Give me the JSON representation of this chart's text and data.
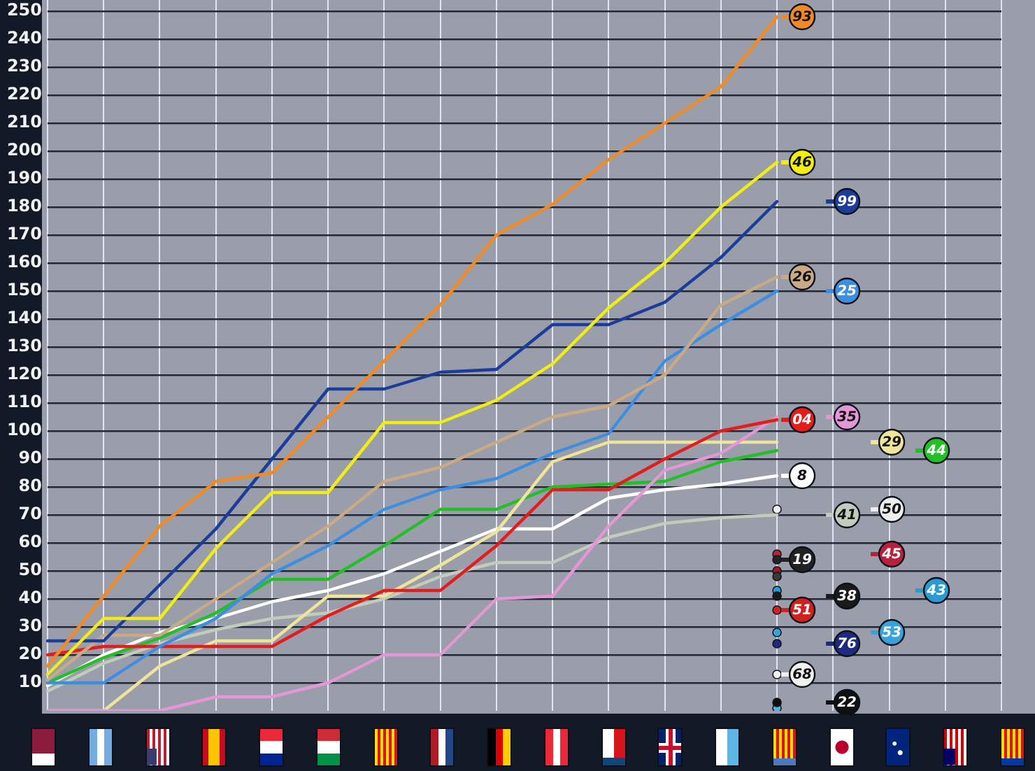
{
  "chart_data": {
    "type": "line",
    "categories": [
      null,
      null,
      null,
      null,
      null,
      null,
      null,
      null,
      null,
      null,
      null,
      null,
      null,
      null,
      null,
      null,
      null,
      null
    ],
    "series": [
      {
        "name": "93",
        "color": "#f08a24",
        "values": [
          16,
          41,
          66,
          82,
          85,
          105,
          125,
          145,
          170,
          181,
          197,
          210,
          223,
          248,
          null,
          null,
          null,
          null
        ]
      },
      {
        "name": "46",
        "color": "#f2ee10",
        "values": [
          13,
          33,
          33,
          58,
          78,
          78,
          103,
          103,
          111,
          124,
          144,
          160,
          180,
          196,
          null,
          null,
          null,
          null
        ]
      },
      {
        "name": "99",
        "color": "#1c3c9c",
        "values": [
          25,
          25,
          45,
          65,
          90,
          115,
          115,
          121,
          122,
          138,
          138,
          146,
          162,
          182,
          null,
          null,
          null,
          null
        ]
      },
      {
        "name": "26",
        "color": "#c9aa84",
        "values": [
          11,
          27,
          27,
          40,
          53,
          66,
          82,
          87,
          96,
          105,
          109,
          120,
          145,
          155,
          null,
          null,
          null,
          null
        ]
      },
      {
        "name": "25",
        "color": "#3d8ee0",
        "values": [
          10,
          10,
          23,
          33,
          49,
          59,
          72,
          79,
          83,
          92,
          99,
          125,
          138,
          150,
          null,
          null,
          null,
          null
        ]
      },
      {
        "name": "04",
        "color": "#e41c1c",
        "values": [
          20,
          23,
          23,
          23,
          23,
          34,
          43,
          43,
          59,
          79,
          79,
          90,
          100,
          104,
          null,
          null,
          null,
          null
        ]
      },
      {
        "name": "35",
        "color": "#e596d6",
        "values": [
          0,
          0,
          0,
          5,
          5,
          10,
          20,
          20,
          40,
          41,
          66,
          86,
          92,
          105,
          null,
          null,
          null,
          null
        ]
      },
      {
        "name": "29",
        "color": "#efe59a",
        "values": [
          0,
          0,
          16,
          25,
          25,
          41,
          41,
          52,
          64,
          89,
          96,
          96,
          96,
          96,
          null,
          null,
          null,
          null
        ]
      },
      {
        "name": "44",
        "color": "#22c026",
        "values": [
          10,
          19,
          26,
          35,
          47,
          47,
          59,
          72,
          72,
          80,
          81,
          82,
          89,
          93,
          null,
          null,
          null,
          null
        ]
      },
      {
        "name": "8",
        "color": "#ffffff",
        "values": [
          9,
          20,
          28,
          33,
          39,
          43,
          49,
          57,
          65,
          65,
          76,
          79,
          81,
          84,
          null,
          null,
          null,
          null
        ]
      },
      {
        "name": "41",
        "color": "#c3cbbb",
        "values": [
          7,
          17,
          24,
          29,
          33,
          35,
          40,
          48,
          53,
          53,
          62,
          67,
          69,
          70,
          null,
          null,
          null,
          null
        ]
      },
      {
        "name": "50",
        "type": "scatter",
        "color": "#eeeeee",
        "values": [
          null,
          null,
          null,
          null,
          null,
          null,
          null,
          null,
          null,
          null,
          null,
          null,
          null,
          72,
          null,
          null,
          null,
          null
        ]
      },
      {
        "name": "19",
        "type": "scatter",
        "color": "#222222",
        "values": [
          null,
          null,
          null,
          null,
          null,
          null,
          null,
          null,
          null,
          null,
          null,
          null,
          null,
          54,
          null,
          null,
          null,
          null
        ]
      },
      {
        "name": "45",
        "type": "scatter",
        "color": "#b8203c",
        "values": [
          null,
          null,
          null,
          null,
          null,
          null,
          null,
          null,
          null,
          null,
          null,
          null,
          null,
          56,
          null,
          null,
          null,
          null
        ]
      },
      {
        "type": "scatter",
        "color": "#3a3a3a",
        "values": [
          null,
          null,
          null,
          null,
          null,
          null,
          null,
          null,
          null,
          null,
          null,
          null,
          null,
          48,
          null,
          null,
          null,
          null
        ]
      },
      {
        "type": "scatter",
        "color": "#a01820",
        "values": [
          null,
          null,
          null,
          null,
          null,
          null,
          null,
          null,
          null,
          null,
          null,
          null,
          null,
          50,
          null,
          null,
          null,
          null
        ]
      },
      {
        "name": "38",
        "type": "scatter",
        "color": "#1a1a1a",
        "values": [
          null,
          null,
          null,
          null,
          null,
          null,
          null,
          null,
          null,
          null,
          null,
          null,
          null,
          41,
          null,
          null,
          null,
          null
        ]
      },
      {
        "name": "43",
        "type": "scatter",
        "color": "#2c9ad2",
        "values": [
          null,
          null,
          null,
          null,
          null,
          null,
          null,
          null,
          null,
          null,
          null,
          null,
          null,
          43,
          null,
          null,
          null,
          null
        ]
      },
      {
        "name": "51",
        "type": "scatter",
        "color": "#d02020",
        "values": [
          null,
          null,
          null,
          null,
          null,
          null,
          null,
          null,
          null,
          null,
          null,
          null,
          null,
          36,
          null,
          null,
          null,
          null
        ]
      },
      {
        "name": "53",
        "type": "scatter",
        "color": "#3aa2da",
        "values": [
          null,
          null,
          null,
          null,
          null,
          null,
          null,
          null,
          null,
          null,
          null,
          null,
          null,
          28,
          null,
          null,
          null,
          null
        ]
      },
      {
        "name": "76",
        "type": "scatter",
        "color": "#1c2a80",
        "values": [
          null,
          null,
          null,
          null,
          null,
          null,
          null,
          null,
          null,
          null,
          null,
          null,
          null,
          24,
          null,
          null,
          null,
          null
        ]
      },
      {
        "name": "68",
        "type": "scatter",
        "color": "#f0f0f0",
        "values": [
          null,
          null,
          null,
          null,
          null,
          null,
          null,
          null,
          null,
          null,
          null,
          null,
          null,
          13,
          null,
          null,
          null,
          null
        ]
      },
      {
        "name": "22",
        "type": "scatter",
        "color": "#101010",
        "values": [
          null,
          null,
          null,
          null,
          null,
          null,
          null,
          null,
          null,
          null,
          null,
          null,
          null,
          3,
          null,
          null,
          null,
          null
        ]
      },
      {
        "type": "scatter",
        "color": "#58b0e0",
        "values": [
          null,
          null,
          null,
          null,
          null,
          null,
          null,
          null,
          null,
          null,
          null,
          null,
          null,
          1,
          null,
          null,
          null,
          null
        ]
      }
    ],
    "ylim": [
      0,
      254
    ],
    "yticks": [
      10,
      20,
      30,
      40,
      50,
      60,
      70,
      80,
      90,
      100,
      110,
      120,
      130,
      140,
      150,
      160,
      170,
      180,
      190,
      200,
      210,
      220,
      230,
      240,
      250
    ],
    "grid": true,
    "legend": "right",
    "tick_labels": "y"
  }
}
